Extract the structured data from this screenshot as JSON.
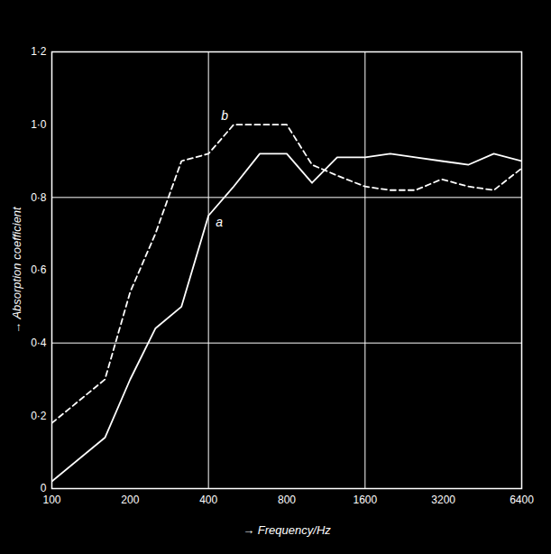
{
  "chart_data": {
    "type": "line",
    "x_label": "→ Frequency/Hz",
    "y_label": "→ Absorption coefficient",
    "log": "x",
    "grid": true,
    "xlim": [
      100,
      6400
    ],
    "xticks": [
      100,
      200,
      400,
      800,
      1600,
      3200,
      6400
    ],
    "ylim": [
      0,
      1.2
    ],
    "yticks": [
      0,
      {
        "value": 0.2,
        "label": "0·2"
      },
      {
        "value": 0.4,
        "label": "0·4"
      },
      {
        "value": 0.6,
        "label": "0·6"
      },
      {
        "value": 0.8,
        "label": "0·8"
      },
      {
        "value": 1.0,
        "label": "1·0"
      },
      {
        "value": 1.2,
        "label": "1·2"
      }
    ],
    "x": [
      100,
      160,
      200,
      250,
      315,
      400,
      500,
      630,
      800,
      1000,
      1250,
      1600,
      2000,
      2500,
      3150,
      4000,
      5000,
      6400
    ],
    "series": [
      {
        "name": "a",
        "color": "#ffffff",
        "line_style": "solid",
        "values": [
          0.02,
          0.14,
          0.3,
          0.44,
          0.5,
          0.75,
          0.83,
          0.92,
          0.92,
          0.84,
          0.91,
          0.91,
          0.92,
          0.91,
          0.9,
          0.89,
          0.92,
          0.9
        ]
      },
      {
        "name": "b",
        "color": "#ffffff",
        "line_style": "dashed",
        "values": [
          0.18,
          0.3,
          0.54,
          0.7,
          0.9,
          0.92,
          1.0,
          1.0,
          1.0,
          0.89,
          0.86,
          0.83,
          0.82,
          0.82,
          0.85,
          0.83,
          0.82,
          0.88
        ]
      }
    ]
  }
}
